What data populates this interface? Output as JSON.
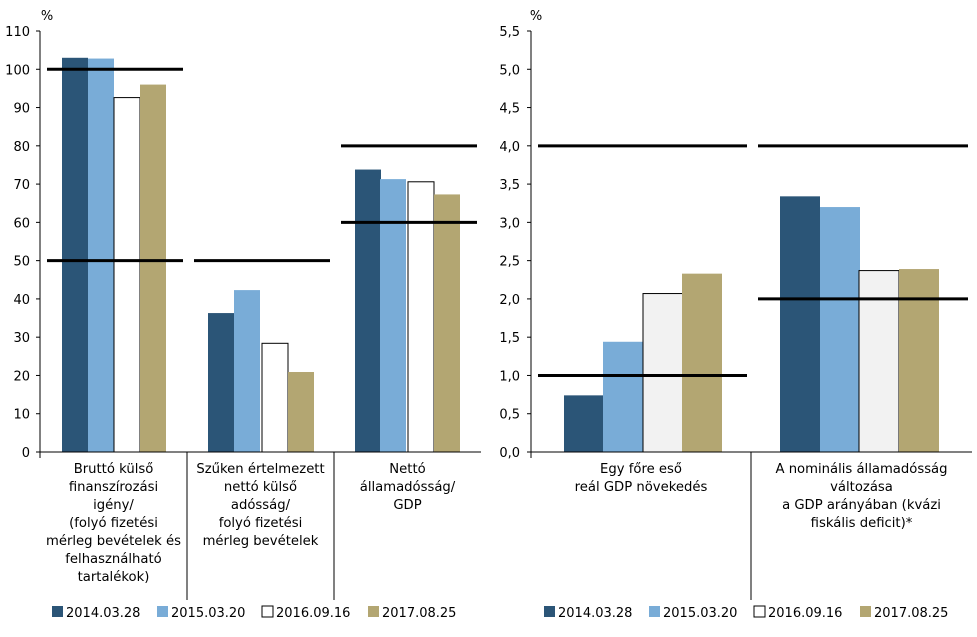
{
  "legend_swatch_colors": [
    "#2b5577",
    "#79acd7",
    "#ffffff",
    "#b3a672"
  ],
  "chart_data": [
    {
      "type": "bar",
      "unit_label": "%",
      "ylim": [
        0,
        110
      ],
      "yticks": [
        "0",
        "10",
        "20",
        "30",
        "40",
        "50",
        "60",
        "70",
        "80",
        "90",
        "100",
        "110"
      ],
      "tick_step": 10,
      "grid": false,
      "legend_position": "bottom",
      "categories": [
        [
          "Bruttó külső",
          "finanszírozási",
          "igény/",
          "(folyó fizetési",
          "mérleg bevételek és",
          "felhasználható",
          "tartalékok)"
        ],
        [
          "Szűken értelmezett",
          "nettó külső",
          "adósság/",
          "folyó fizetési",
          "mérleg bevételek"
        ],
        [
          "Nettó",
          "államadósság/",
          "GDP"
        ]
      ],
      "series": [
        {
          "name": "2014.03.28",
          "color": "#2b5577",
          "values": [
            103,
            36.3,
            73.8
          ]
        },
        {
          "name": "2015.03.20",
          "color": "#79acd7",
          "values": [
            102.8,
            42.3,
            71.3
          ]
        },
        {
          "name": "2016.09.16",
          "color": "#ffffff",
          "values": [
            92.6,
            28.4,
            70.6
          ]
        },
        {
          "name": "2017.08.25",
          "color": "#b3a672",
          "values": [
            96,
            20.9,
            67.3
          ]
        }
      ],
      "threshold_lines": [
        {
          "category": 0,
          "value": 100
        },
        {
          "category": 0,
          "value": 50
        },
        {
          "category": 1,
          "value": 50
        },
        {
          "category": 2,
          "value": 80
        },
        {
          "category": 2,
          "value": 60
        }
      ]
    },
    {
      "type": "bar",
      "unit_label": "%",
      "ylim": [
        0,
        5.5
      ],
      "yticks": [
        "0,0",
        "0,5",
        "1,0",
        "1,5",
        "2,0",
        "2,5",
        "3,0",
        "3,5",
        "4,0",
        "4,5",
        "5,0",
        "5,5"
      ],
      "tick_step": 0.5,
      "grid": false,
      "legend_position": "bottom",
      "categories": [
        [
          "Egy főre eső",
          "reál GDP növekedés"
        ],
        [
          "A nominális államadósság",
          "változása",
          "a GDP arányában (kvázi",
          "fiskális deficit)*"
        ]
      ],
      "series": [
        {
          "name": "2014.03.28",
          "color": "#2b5577",
          "values": [
            0.74,
            3.34
          ]
        },
        {
          "name": "2015.03.20",
          "color": "#79acd7",
          "values": [
            1.44,
            3.2
          ]
        },
        {
          "name": "2016.09.16",
          "color": "#f2f2f2",
          "values": [
            2.07,
            2.37
          ]
        },
        {
          "name": "2017.08.25",
          "color": "#b3a672",
          "values": [
            2.33,
            2.39
          ]
        }
      ],
      "threshold_lines": [
        {
          "category": 0,
          "value": 4.0
        },
        {
          "category": 0,
          "value": 1.0
        },
        {
          "category": 1,
          "value": 4.0
        },
        {
          "category": 1,
          "value": 2.0
        }
      ]
    }
  ]
}
